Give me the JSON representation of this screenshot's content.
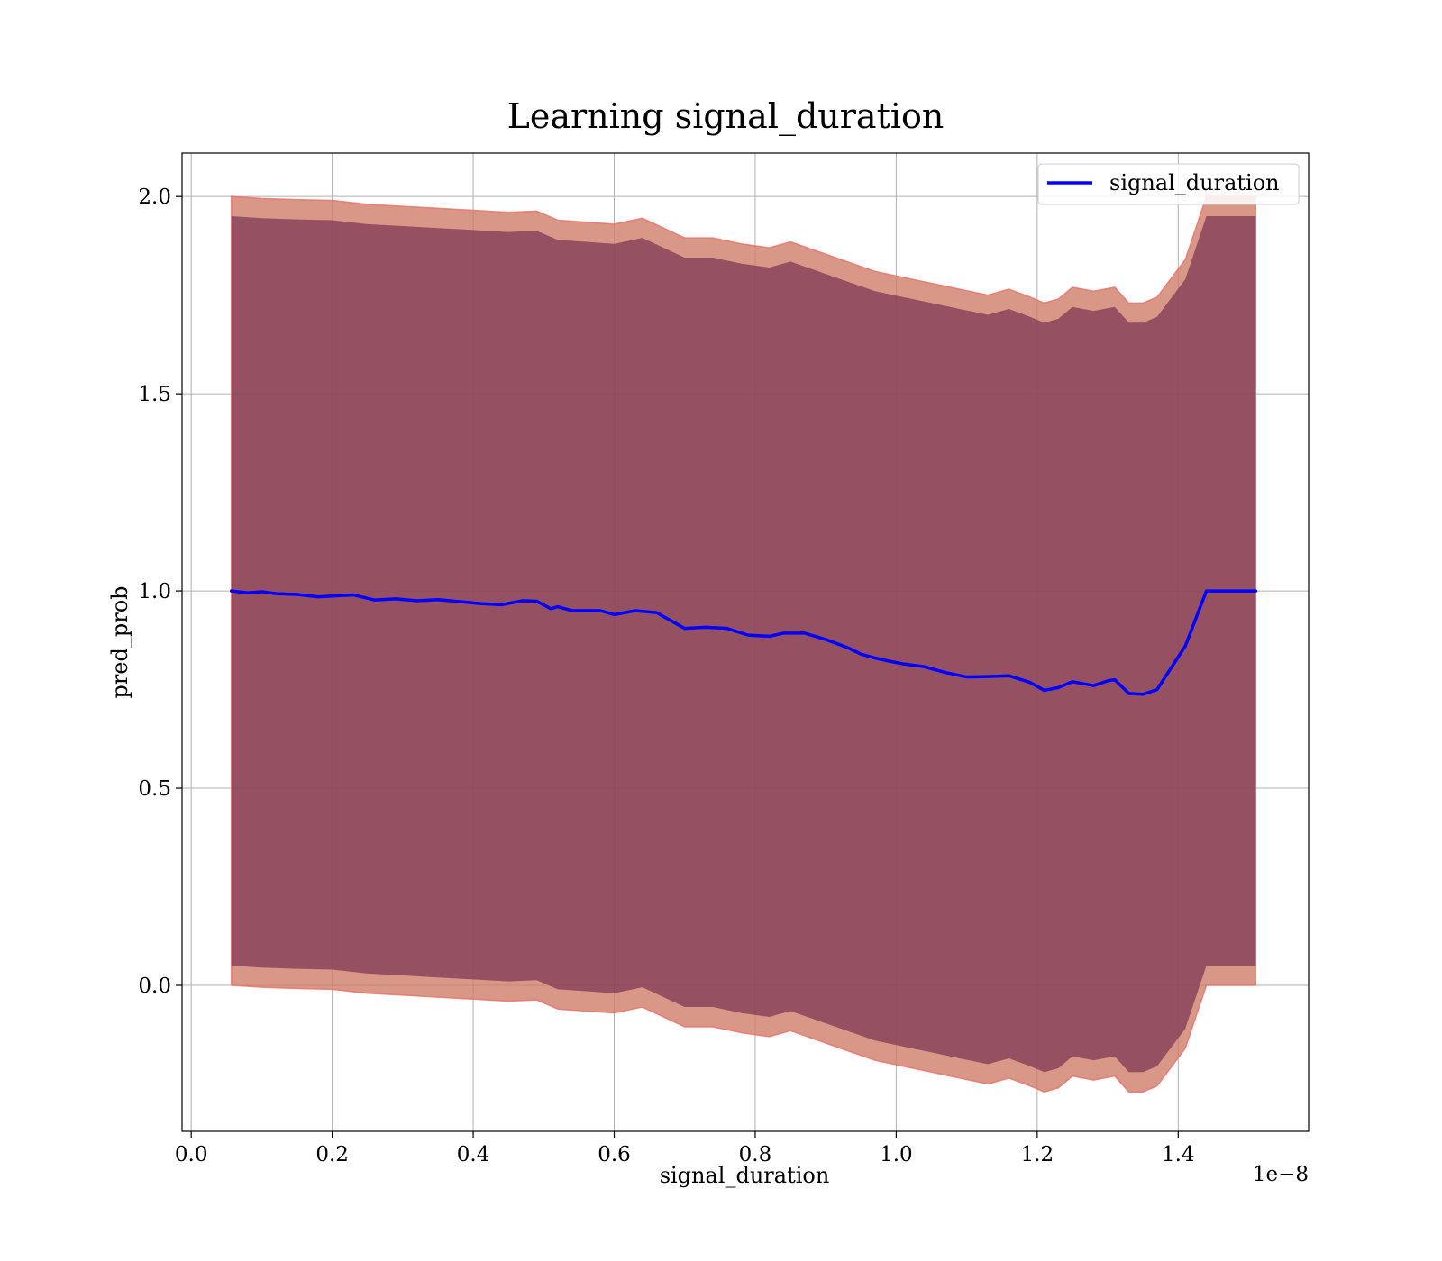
{
  "chart_data": {
    "type": "line",
    "title": "Learning signal_duration",
    "xlabel": "signal_duration",
    "ylabel": "pred_prob",
    "x_offset_text": "1e−8",
    "xlim": [
      -0.013,
      1.585
    ],
    "ylim": [
      -0.37,
      2.11
    ],
    "xticks": [
      0.0,
      0.2,
      0.4,
      0.6,
      0.8,
      1.0,
      1.2,
      1.4
    ],
    "xtick_labels": [
      "0.0",
      "0.2",
      "0.4",
      "0.6",
      "0.8",
      "1.0",
      "1.2",
      "1.4"
    ],
    "yticks": [
      0.0,
      0.5,
      1.0,
      1.5,
      2.0
    ],
    "ytick_labels": [
      "0.0",
      "0.5",
      "1.0",
      "1.5",
      "2.0"
    ],
    "grid": true,
    "legend_position": "top-right",
    "colors": {
      "line": "#0000ff",
      "band_outer": "#ff6666",
      "band_inner": "#7f3a56",
      "band_mix": "#c8906f"
    },
    "series": [
      {
        "name": "signal_duration",
        "x": [
          0.057,
          0.08,
          0.1,
          0.12,
          0.15,
          0.18,
          0.2,
          0.23,
          0.26,
          0.29,
          0.32,
          0.35,
          0.38,
          0.41,
          0.44,
          0.47,
          0.49,
          0.51,
          0.52,
          0.54,
          0.58,
          0.6,
          0.63,
          0.66,
          0.69,
          0.7,
          0.73,
          0.76,
          0.79,
          0.82,
          0.84,
          0.87,
          0.9,
          0.93,
          0.95,
          0.97,
          0.99,
          1.01,
          1.04,
          1.07,
          1.1,
          1.13,
          1.16,
          1.19,
          1.21,
          1.23,
          1.25,
          1.28,
          1.3,
          1.31,
          1.33,
          1.35,
          1.37,
          1.41,
          1.44,
          1.51
        ],
        "y": [
          1.0,
          0.995,
          0.998,
          0.993,
          0.991,
          0.985,
          0.987,
          0.99,
          0.977,
          0.98,
          0.975,
          0.978,
          0.973,
          0.968,
          0.965,
          0.975,
          0.974,
          0.955,
          0.96,
          0.95,
          0.95,
          0.94,
          0.95,
          0.945,
          0.915,
          0.905,
          0.908,
          0.905,
          0.888,
          0.885,
          0.893,
          0.893,
          0.877,
          0.857,
          0.84,
          0.83,
          0.822,
          0.815,
          0.808,
          0.793,
          0.782,
          0.783,
          0.785,
          0.768,
          0.748,
          0.755,
          0.77,
          0.76,
          0.772,
          0.775,
          0.74,
          0.738,
          0.75,
          0.86,
          1.0,
          1.0
        ]
      }
    ],
    "bands": [
      {
        "description_style": "outer",
        "x": [
          0.057,
          0.1,
          0.15,
          0.2,
          0.25,
          0.3,
          0.35,
          0.4,
          0.45,
          0.49,
          0.52,
          0.56,
          0.6,
          0.64,
          0.67,
          0.7,
          0.74,
          0.78,
          0.82,
          0.85,
          0.89,
          0.93,
          0.97,
          1.01,
          1.05,
          1.09,
          1.13,
          1.16,
          1.19,
          1.21,
          1.23,
          1.25,
          1.28,
          1.31,
          1.33,
          1.35,
          1.37,
          1.41,
          1.44,
          1.51
        ],
        "upper": [
          2.0,
          1.995,
          1.992,
          1.99,
          1.98,
          1.975,
          1.97,
          1.965,
          1.96,
          1.963,
          1.94,
          1.935,
          1.93,
          1.945,
          1.92,
          1.895,
          1.895,
          1.88,
          1.87,
          1.885,
          1.86,
          1.835,
          1.81,
          1.795,
          1.78,
          1.765,
          1.75,
          1.765,
          1.745,
          1.73,
          1.74,
          1.77,
          1.76,
          1.77,
          1.73,
          1.73,
          1.745,
          1.84,
          2.0,
          2.0
        ],
        "lower": [
          0.0,
          -0.005,
          -0.008,
          -0.01,
          -0.02,
          -0.025,
          -0.03,
          -0.035,
          -0.04,
          -0.037,
          -0.06,
          -0.065,
          -0.07,
          -0.055,
          -0.08,
          -0.105,
          -0.105,
          -0.12,
          -0.13,
          -0.115,
          -0.14,
          -0.165,
          -0.19,
          -0.205,
          -0.22,
          -0.235,
          -0.25,
          -0.235,
          -0.255,
          -0.27,
          -0.26,
          -0.23,
          -0.24,
          -0.23,
          -0.27,
          -0.27,
          -0.255,
          -0.16,
          0.0,
          0.0
        ]
      },
      {
        "description_style": "inner",
        "x": [
          0.057,
          0.1,
          0.15,
          0.2,
          0.25,
          0.3,
          0.35,
          0.4,
          0.45,
          0.49,
          0.52,
          0.56,
          0.6,
          0.64,
          0.67,
          0.7,
          0.74,
          0.78,
          0.82,
          0.85,
          0.89,
          0.93,
          0.97,
          1.01,
          1.05,
          1.09,
          1.13,
          1.16,
          1.19,
          1.21,
          1.23,
          1.25,
          1.28,
          1.31,
          1.33,
          1.35,
          1.37,
          1.41,
          1.44,
          1.51
        ],
        "upper": [
          1.95,
          1.945,
          1.942,
          1.94,
          1.93,
          1.925,
          1.92,
          1.915,
          1.91,
          1.913,
          1.89,
          1.885,
          1.88,
          1.895,
          1.87,
          1.845,
          1.845,
          1.83,
          1.82,
          1.835,
          1.81,
          1.785,
          1.76,
          1.745,
          1.73,
          1.715,
          1.7,
          1.715,
          1.695,
          1.68,
          1.69,
          1.72,
          1.71,
          1.72,
          1.68,
          1.68,
          1.695,
          1.79,
          1.95,
          1.95
        ],
        "lower": [
          0.05,
          0.045,
          0.042,
          0.04,
          0.03,
          0.025,
          0.02,
          0.015,
          0.01,
          0.013,
          -0.01,
          -0.015,
          -0.02,
          -0.005,
          -0.03,
          -0.055,
          -0.055,
          -0.07,
          -0.08,
          -0.065,
          -0.09,
          -0.115,
          -0.14,
          -0.155,
          -0.17,
          -0.185,
          -0.2,
          -0.185,
          -0.205,
          -0.22,
          -0.21,
          -0.18,
          -0.19,
          -0.18,
          -0.22,
          -0.22,
          -0.205,
          -0.11,
          0.05,
          0.05
        ]
      }
    ]
  }
}
